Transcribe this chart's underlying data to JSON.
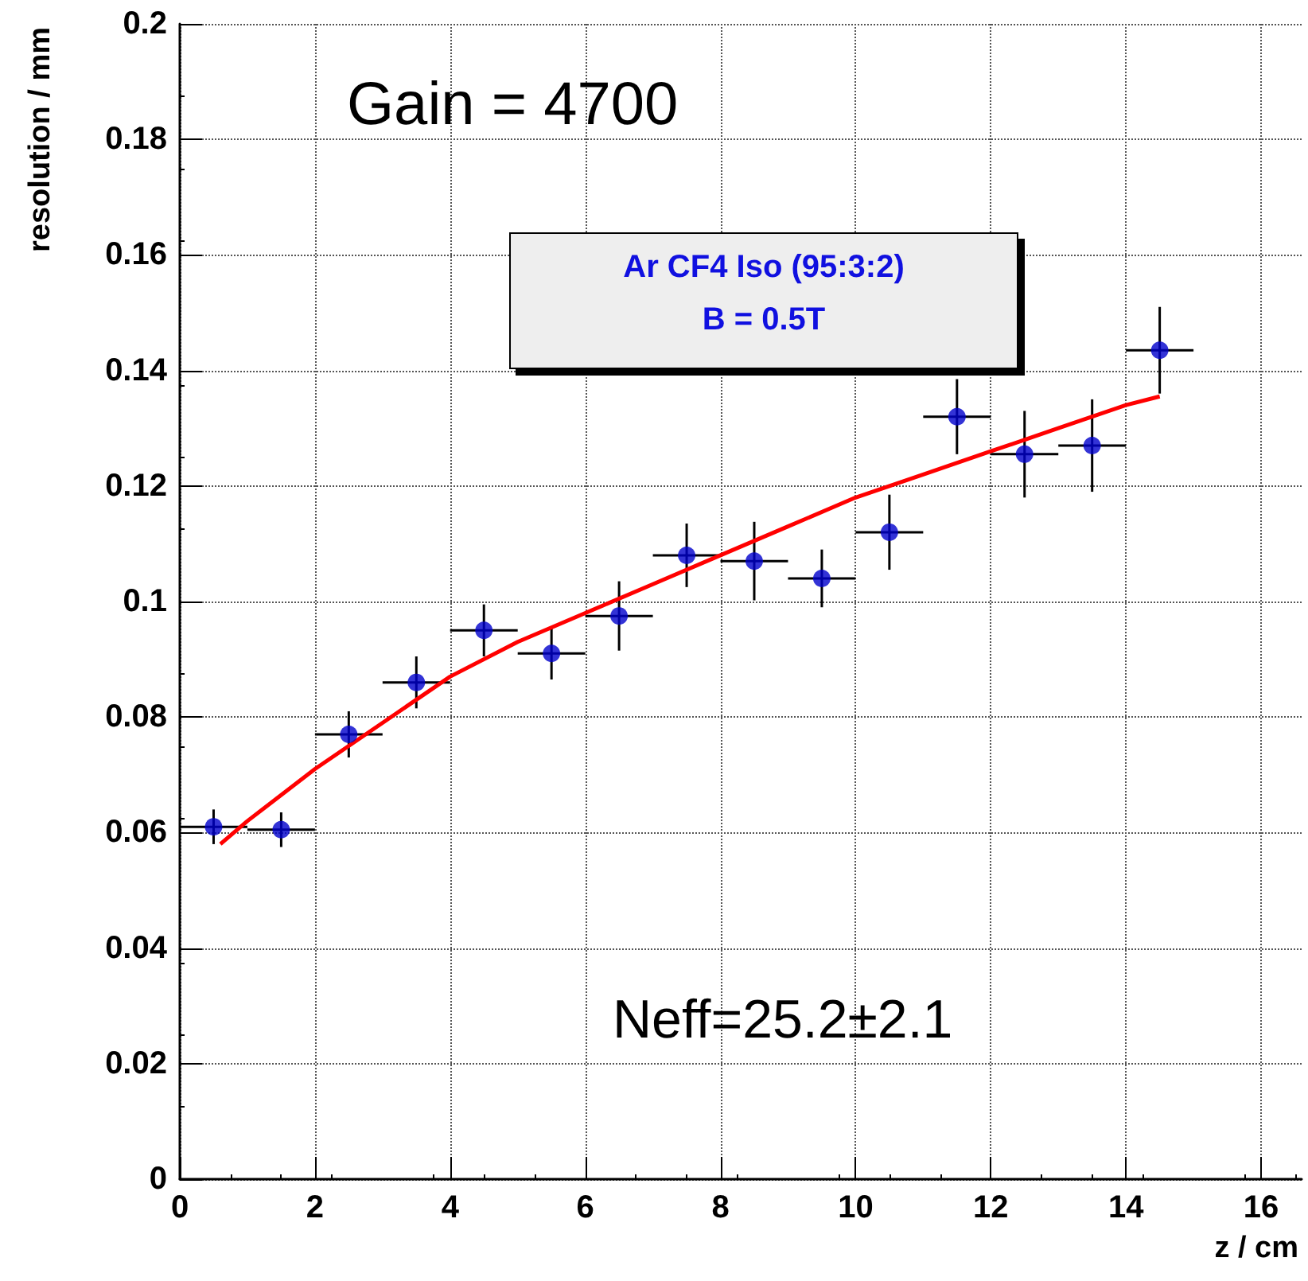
{
  "chart_data": {
    "type": "scatter",
    "xlabel": "z / cm",
    "ylabel": "resolution / mm",
    "xlim": [
      0,
      16.6
    ],
    "xticks": [
      0,
      2,
      4,
      6,
      8,
      10,
      12,
      14,
      16
    ],
    "ylim": [
      0,
      0.2
    ],
    "yticks": [
      0,
      0.02,
      0.04,
      0.06,
      0.08,
      0.1,
      0.12,
      0.14,
      0.16,
      0.18,
      0.2
    ],
    "grid": true,
    "series": [
      {
        "type": "scatter",
        "color": "#0000cc",
        "marker": "circle",
        "x": [
          0.5,
          1.5,
          2.5,
          3.5,
          4.5,
          5.5,
          6.5,
          7.5,
          8.5,
          9.5,
          10.5,
          11.5,
          12.5,
          13.5,
          14.5
        ],
        "values": [
          0.061,
          0.0605,
          0.077,
          0.086,
          0.095,
          0.091,
          0.0975,
          0.108,
          0.107,
          0.104,
          0.112,
          0.132,
          0.1255,
          0.127,
          0.1435
        ],
        "errors": [
          0.003,
          0.003,
          0.004,
          0.0045,
          0.0045,
          0.0045,
          0.006,
          0.0055,
          0.0068,
          0.005,
          0.0065,
          0.0065,
          0.0075,
          0.008,
          0.0075
        ],
        "xerrors": [
          0.5,
          0.5,
          0.5,
          0.5,
          0.5,
          0.5,
          0.5,
          0.5,
          0.5,
          0.5,
          0.5,
          0.5,
          0.5,
          0.5,
          0.5
        ]
      },
      {
        "type": "line",
        "color": "#ff0000",
        "line_style": "solid",
        "x": [
          0.6,
          1,
          2,
          3,
          4,
          5,
          6,
          7,
          8,
          9,
          10,
          11,
          12,
          13,
          14,
          14.5
        ],
        "values": [
          0.058,
          0.062,
          0.071,
          0.079,
          0.087,
          0.093,
          0.098,
          0.103,
          0.108,
          0.113,
          0.118,
          0.122,
          0.126,
          0.13,
          0.134,
          0.1355
        ]
      }
    ],
    "annotations": [
      "Gain = 4700",
      "Ar CF4 Iso (95:3:2)",
      "B = 0.5T",
      "Neff=25.2±2.1"
    ]
  }
}
